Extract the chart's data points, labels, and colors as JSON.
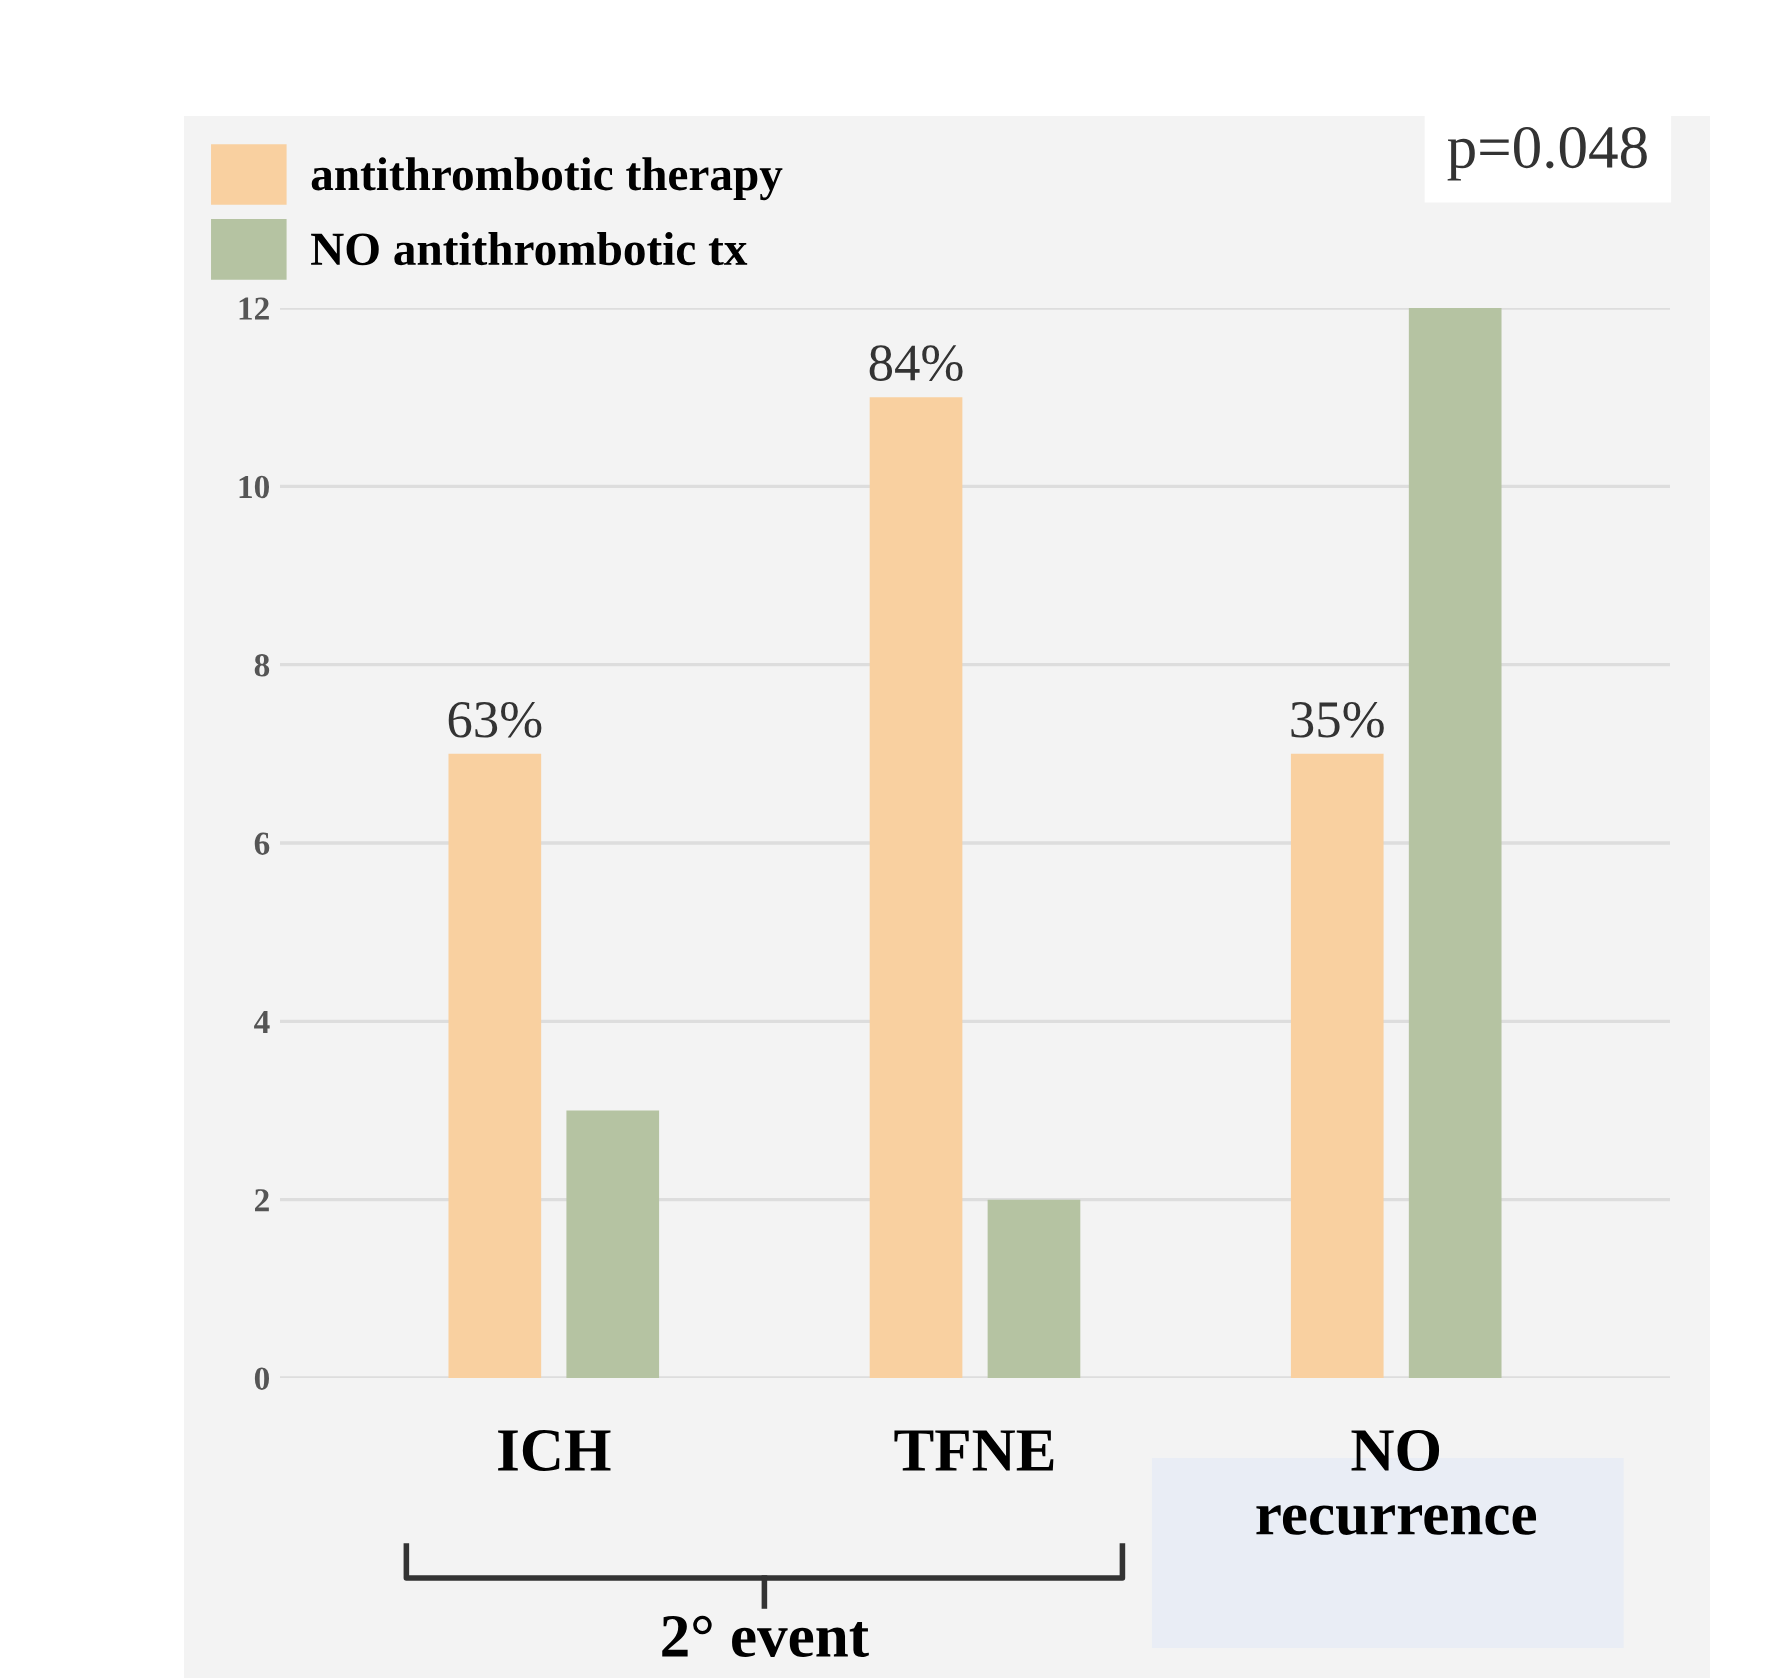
{
  "chart_data": {
    "type": "bar",
    "categories": [
      "ICH",
      "TFNE",
      "NO\nrecurrence"
    ],
    "series": [
      {
        "name": "antithrombotic therapy",
        "color": "#f9d0a0",
        "values": [
          7,
          11,
          7
        ]
      },
      {
        "name": "NO antithrombotic tx",
        "color": "#b5c3a2",
        "values": [
          3,
          2,
          12
        ]
      }
    ],
    "ylim": [
      0,
      12
    ],
    "yticks": [
      0,
      2,
      4,
      6,
      8,
      10,
      12
    ],
    "grid": "y",
    "legend": "top left",
    "annotations": [
      "p=0.048",
      "2° event",
      "63%",
      "84%",
      "35%"
    ]
  }
}
